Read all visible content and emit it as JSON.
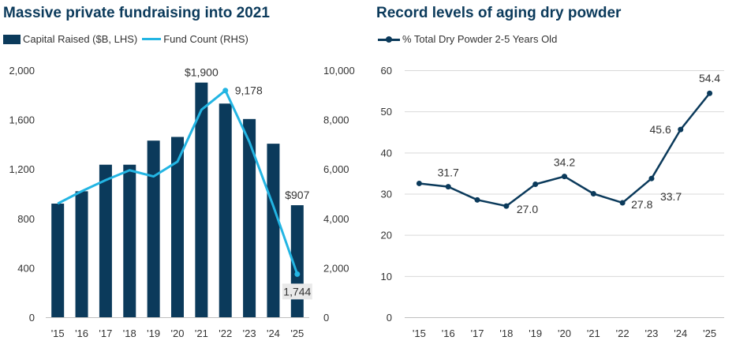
{
  "chart_data": [
    {
      "type": "bar",
      "title": "Massive private fundraising into 2021",
      "categories": [
        "'15",
        "'16",
        "'17",
        "'18",
        "'19",
        "'20",
        "'21",
        "'22",
        "'23",
        "'24",
        "'25"
      ],
      "series": [
        {
          "name": "Capital Raised ($B, LHS)",
          "kind": "bar",
          "axis": "left",
          "values": [
            920,
            1020,
            1235,
            1235,
            1430,
            1460,
            1900,
            1730,
            1605,
            1405,
            907
          ]
        },
        {
          "name": "Fund Count (RHS)",
          "kind": "line",
          "axis": "right",
          "values": [
            4600,
            5100,
            5550,
            5950,
            5700,
            6300,
            8400,
            9178,
            7100,
            4500,
            1744
          ]
        }
      ],
      "left_axis": {
        "ylim": [
          0,
          2000
        ],
        "ticks": [
          "0",
          "400",
          "800",
          "1,200",
          "1,600",
          "2,000"
        ],
        "tick_values": [
          0,
          400,
          800,
          1200,
          1600,
          2000
        ]
      },
      "right_axis": {
        "ylim": [
          0,
          10000
        ],
        "ticks": [
          "0",
          "2,000",
          "4,000",
          "6,000",
          "8,000",
          "10,000"
        ],
        "tick_values": [
          0,
          2000,
          4000,
          6000,
          8000,
          10000
        ]
      },
      "annotations": [
        {
          "text": "$1,900",
          "series": 0,
          "index": 6
        },
        {
          "text": "$907",
          "series": 0,
          "index": 10
        },
        {
          "text": "9,178",
          "series": 1,
          "index": 7
        },
        {
          "text": "1,744",
          "series": 1,
          "index": 10
        }
      ],
      "legend_position": "top-left",
      "grid": false
    },
    {
      "type": "line",
      "title": "Record levels of aging dry powder",
      "categories": [
        "'15",
        "'16",
        "'17",
        "'18",
        "'19",
        "'20",
        "'21",
        "'22",
        "'23",
        "'24",
        "'25"
      ],
      "series": [
        {
          "name": "% Total Dry Powder 2-5 Years Old",
          "values": [
            32.5,
            31.7,
            28.5,
            27.0,
            32.3,
            34.2,
            30.0,
            27.8,
            33.7,
            45.6,
            54.4
          ]
        }
      ],
      "ylim": [
        0,
        60
      ],
      "ticks": [
        "0",
        "10",
        "20",
        "30",
        "40",
        "50",
        "60"
      ],
      "tick_values": [
        0,
        10,
        20,
        30,
        40,
        50,
        60
      ],
      "annotations": [
        {
          "text": "31.7",
          "index": 1
        },
        {
          "text": "27.0",
          "index": 3
        },
        {
          "text": "34.2",
          "index": 5
        },
        {
          "text": "27.8",
          "index": 7
        },
        {
          "text": "33.7",
          "index": 8
        },
        {
          "text": "45.6",
          "index": 9
        },
        {
          "text": "54.4",
          "index": 10
        }
      ],
      "legend_position": "top-left",
      "grid": true
    }
  ],
  "colors": {
    "bar": "#0b3a5b",
    "fund_line": "#23b5e3",
    "dry_line": "#0b3a5b",
    "grid": "#d9d9d9",
    "axis": "#333333",
    "title": "#0b3a5b"
  }
}
